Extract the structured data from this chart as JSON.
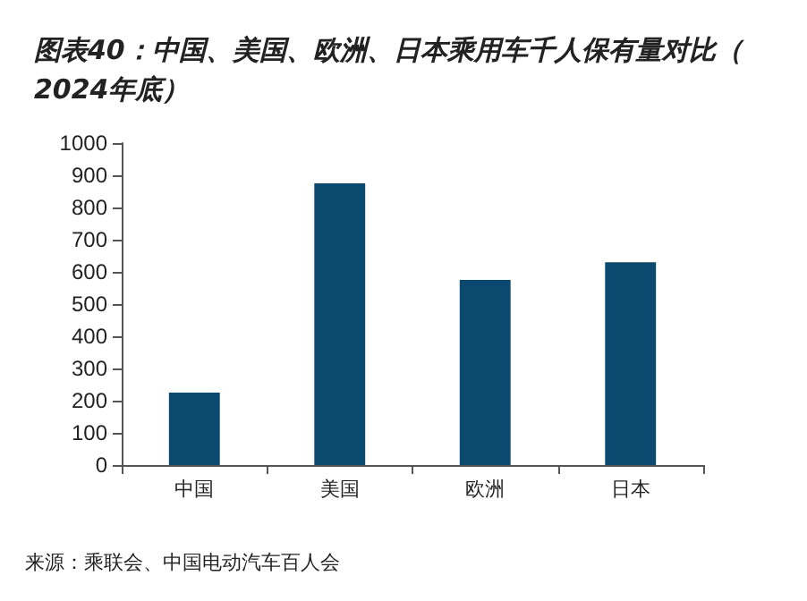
{
  "chart_data": {
    "type": "bar",
    "title": "图表40：中国、美国、欧洲、日本乘用车千人保有量对比（2024年底）",
    "categories": [
      "中国",
      "美国",
      "欧洲",
      "日本"
    ],
    "values": [
      225,
      875,
      575,
      630
    ],
    "color": "#0b4a6e",
    "ylim": [
      0,
      1000
    ],
    "yticks": [
      0,
      100,
      200,
      300,
      400,
      500,
      600,
      700,
      800,
      900,
      1000
    ],
    "grid": false,
    "annotations": [
      "来源：乘联会、中国电动汽车百人会"
    ]
  }
}
